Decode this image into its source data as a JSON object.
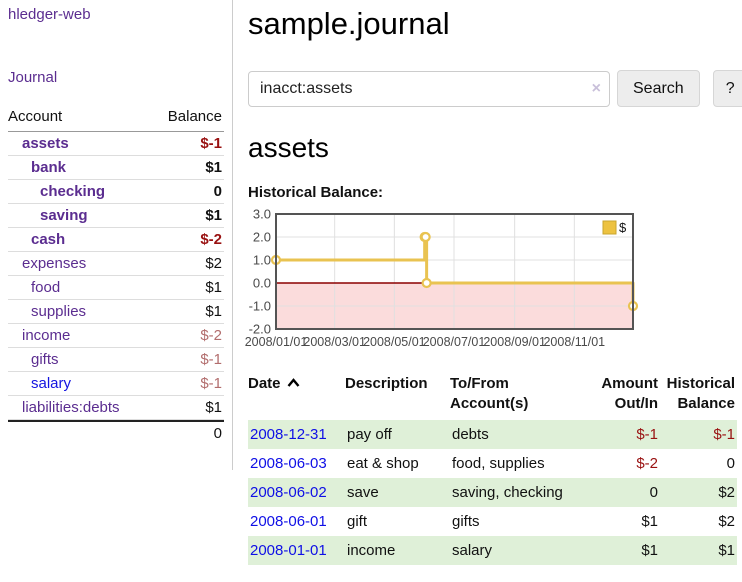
{
  "colors": {
    "accent_purple": "#5b2d90",
    "link_blue": "#0f0fe6",
    "negative_strong": "#991111",
    "negative_light": "#b26d6d",
    "row_green": "#dff0d8",
    "series_gold": "#e9c351",
    "legend_gold": "#edc240",
    "negative_region_pink": "#fbdcdc",
    "zero_line_red": "#8b0000"
  },
  "sidebar": {
    "brand": "hledger-web",
    "journal_link": "Journal",
    "accounts": {
      "col_account": "Account",
      "col_balance": "Balance",
      "rows": [
        {
          "name": "assets",
          "balance": "$-1",
          "level": 1,
          "bold": true,
          "bal_class": "neg-strong"
        },
        {
          "name": "bank",
          "balance": "$1",
          "level": 2,
          "bold": true,
          "bal_class": ""
        },
        {
          "name": "checking",
          "balance": "0",
          "level": 3,
          "bold": true,
          "bal_class": ""
        },
        {
          "name": "saving",
          "balance": "$1",
          "level": 3,
          "bold": true,
          "bal_class": ""
        },
        {
          "name": "cash",
          "balance": "$-2",
          "level": 2,
          "bold": true,
          "bal_class": "neg-strong"
        },
        {
          "name": "expenses",
          "balance": "$2",
          "level": 1,
          "bold": false,
          "bal_class": ""
        },
        {
          "name": "food",
          "balance": "$1",
          "level": 2,
          "bold": false,
          "bal_class": ""
        },
        {
          "name": "supplies",
          "balance": "$1",
          "level": 2,
          "bold": false,
          "bal_class": ""
        },
        {
          "name": "income",
          "balance": "$-2",
          "level": 1,
          "bold": false,
          "bal_class": "neg-light"
        },
        {
          "name": "gifts",
          "balance": "$-1",
          "level": 2,
          "bold": false,
          "bal_class": "neg-light"
        },
        {
          "name": "salary",
          "balance": "$-1",
          "level": 2,
          "bold": false,
          "bal_class": "neg-light",
          "link_blue": true
        },
        {
          "name": "liabilities:debts",
          "balance": "$1",
          "level": 1,
          "bold": false,
          "bal_class": ""
        }
      ],
      "total": "0"
    }
  },
  "main": {
    "title": "sample.journal",
    "search": {
      "value": "inacct:assets",
      "clear_icon": "×",
      "button_label": "Search",
      "help_label": "?"
    },
    "account_heading": "assets",
    "chart_label": "Historical Balance:"
  },
  "chart_data": {
    "type": "line",
    "title": "Historical Balance",
    "series": [
      {
        "name": "$",
        "step": true,
        "marker": "open-circle",
        "color": "#e9c351",
        "points": [
          [
            "2008-01-01",
            1.0
          ],
          [
            "2008-06-01",
            2.0
          ],
          [
            "2008-06-02",
            2.0
          ],
          [
            "2008-06-03",
            0.0
          ],
          [
            "2008-12-31",
            -1.0
          ]
        ]
      }
    ],
    "x_range": [
      "2008-01-01",
      "2008-12-31"
    ],
    "x_ticks": [
      "2008/01/01",
      "2008/03/01",
      "2008/05/01",
      "2008/07/01",
      "2008/09/01",
      "2008/11/01"
    ],
    "y_ticks": [
      3.0,
      2.0,
      1.0,
      0.0,
      -1.0,
      -2.0
    ],
    "ylim": [
      -2.0,
      3.0
    ],
    "grid": true,
    "legend": {
      "position": "top-right",
      "entries": [
        {
          "label": "$",
          "color": "#edc240"
        }
      ]
    },
    "negative_region_fill": "#fbdcdc",
    "zero_line_color": "#8b0000"
  },
  "transactions": {
    "headers": [
      {
        "label": "Date",
        "sort": "asc",
        "align": "left"
      },
      {
        "label": "Description",
        "align": "left"
      },
      {
        "label": "To/From\nAccount(s)",
        "align": "left"
      },
      {
        "label": "Amount\nOut/In",
        "align": "right"
      },
      {
        "label": "Historical\nBalance",
        "align": "right"
      }
    ],
    "rows": [
      {
        "date": "2008-12-31",
        "description": "pay off",
        "accounts": "debts",
        "amount": "$-1",
        "balance": "$-1"
      },
      {
        "date": "2008-06-03",
        "description": "eat & shop",
        "accounts": "food, supplies",
        "amount": "$-2",
        "balance": "0"
      },
      {
        "date": "2008-06-02",
        "description": "save",
        "accounts": "saving, checking",
        "amount": "0",
        "balance": "$2"
      },
      {
        "date": "2008-06-01",
        "description": "gift",
        "accounts": "gifts",
        "amount": "$1",
        "balance": "$2"
      },
      {
        "date": "2008-01-01",
        "description": "income",
        "accounts": "salary",
        "amount": "$1",
        "balance": "$1"
      }
    ]
  }
}
